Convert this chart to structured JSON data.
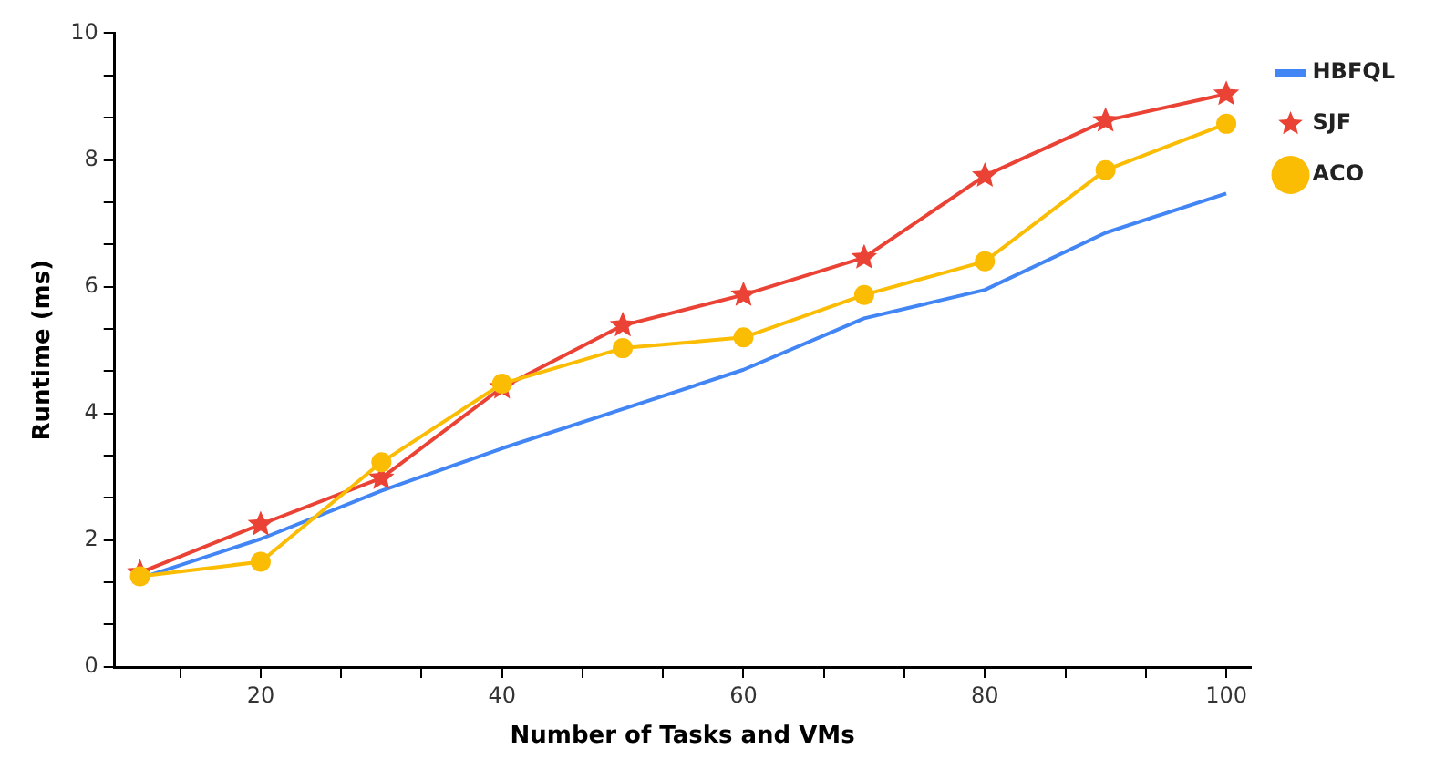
{
  "chart_data": {
    "type": "line",
    "xlabel": "Number of Tasks and VMs",
    "ylabel": "Runtime (ms)",
    "x": [
      10,
      20,
      30,
      40,
      50,
      60,
      70,
      80,
      90,
      100
    ],
    "series": [
      {
        "name": "HBFQL",
        "color": "#4285f4",
        "marker": "none",
        "values": [
          1.4,
          2.02,
          2.78,
          3.45,
          4.07,
          4.69,
          5.5,
          5.95,
          6.85,
          7.47
        ]
      },
      {
        "name": "SJF",
        "color": "#ea4335",
        "marker": "star",
        "values": [
          1.49,
          2.25,
          2.98,
          4.41,
          5.39,
          5.87,
          6.46,
          7.75,
          8.62,
          9.04
        ]
      },
      {
        "name": "ACO",
        "color": "#fbbc04",
        "marker": "circle",
        "values": [
          1.43,
          1.66,
          3.23,
          4.47,
          5.03,
          5.2,
          5.87,
          6.4,
          7.84,
          8.57
        ]
      }
    ],
    "xlim": [
      7.9,
      102
    ],
    "xticks": [
      {
        "value": 13.33,
        "label": null
      },
      20,
      {
        "value": 26.67,
        "label": null
      },
      {
        "value": 33.33,
        "label": null
      },
      40,
      {
        "value": 46.67,
        "label": null
      },
      {
        "value": 53.33,
        "label": null
      },
      60,
      {
        "value": 66.67,
        "label": null
      },
      {
        "value": 73.33,
        "label": null
      },
      80,
      {
        "value": 86.67,
        "label": null
      },
      {
        "value": 93.33,
        "label": null
      },
      100
    ],
    "ylim": [
      0,
      10
    ],
    "yticks": [
      0,
      {
        "value": 0.67,
        "label": null
      },
      {
        "value": 1.33,
        "label": null
      },
      2,
      {
        "value": 2.67,
        "label": null
      },
      {
        "value": 3.33,
        "label": null
      },
      4,
      {
        "value": 4.67,
        "label": null
      },
      {
        "value": 5.33,
        "label": null
      },
      6,
      {
        "value": 6.67,
        "label": null
      },
      {
        "value": 7.33,
        "label": null
      },
      8,
      {
        "value": 8.67,
        "label": null
      },
      {
        "value": 9.33,
        "label": null
      },
      10
    ],
    "grid": false,
    "legend": "right"
  }
}
